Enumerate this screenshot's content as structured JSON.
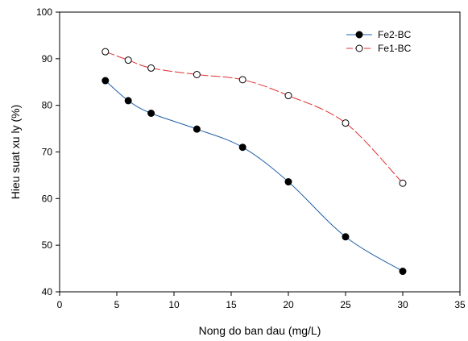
{
  "chart_data": {
    "type": "line",
    "xlabel": "Nong do ban dau (mg/L)",
    "ylabel": "Hieu suat xu ly (%)",
    "xlim": [
      0,
      35
    ],
    "ylim": [
      40,
      100
    ],
    "xticks": [
      0,
      5,
      10,
      15,
      20,
      25,
      30,
      35
    ],
    "yticks": [
      40,
      50,
      60,
      70,
      80,
      90,
      100
    ],
    "grid": false,
    "legend_position": "top-right",
    "series": [
      {
        "name": "Fe2-BC",
        "marker": "filled-circle",
        "line_style": "solid",
        "color": "#1f5fa8",
        "x": [
          4,
          6,
          8,
          12,
          16,
          20,
          25,
          30
        ],
        "y": [
          85.3,
          81.0,
          78.3,
          74.9,
          71.0,
          63.6,
          51.8,
          44.4
        ]
      },
      {
        "name": "Fe1-BC",
        "marker": "open-circle",
        "line_style": "dashed",
        "color": "#e03030",
        "x": [
          4,
          6,
          8,
          12,
          16,
          20,
          25,
          30
        ],
        "y": [
          91.5,
          89.7,
          88.0,
          86.6,
          85.5,
          82.1,
          76.2,
          63.3
        ]
      }
    ]
  }
}
